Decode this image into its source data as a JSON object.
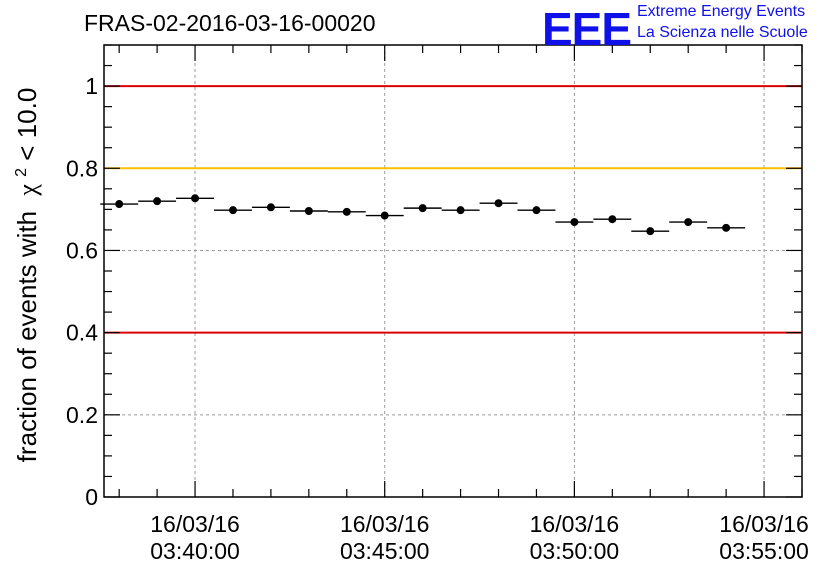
{
  "header": {
    "run_title": "FRAS-02-2016-03-16-00020",
    "logo": "EEE",
    "logo_line1": "Extreme Energy Events",
    "logo_line2": "La Scienza nelle Scuole"
  },
  "chart_data": {
    "type": "scatter",
    "title": "FRAS-02-2016-03-16-00020",
    "ylabel_prefix": "fraction of events with",
    "ylabel_symbol": "χ",
    "ylabel_sup": "2",
    "ylabel_suffix": " < 10.0",
    "xlabel": "",
    "xlim_minutes": [
      37.6,
      56.0
    ],
    "ylim": [
      0,
      1.1
    ],
    "yticks": [
      0,
      0.2,
      0.4,
      0.6,
      0.8,
      1
    ],
    "ytick_labels": [
      "0",
      "0.2",
      "0.4",
      "0.6",
      "0.8",
      "1"
    ],
    "xticks": [
      {
        "minute": 40,
        "line1": "16/03/16",
        "line2": "03:40:00"
      },
      {
        "minute": 45,
        "line1": "16/03/16",
        "line2": "03:45:00"
      },
      {
        "minute": 50,
        "line1": "16/03/16",
        "line2": "03:50:00"
      },
      {
        "minute": 55,
        "line1": "16/03/16",
        "line2": "03:55:00"
      }
    ],
    "grid": true,
    "reference_lines": [
      {
        "y": 1.0,
        "color": "#dd0000"
      },
      {
        "y": 0.8,
        "color": "#ffc000"
      },
      {
        "y": 0.4,
        "color": "#dd0000"
      }
    ],
    "bin_width_minutes": 1,
    "series": [
      {
        "marker_color": "#000000",
        "points": [
          {
            "x": "03:38:00",
            "minute": 38.0,
            "y": 0.713
          },
          {
            "x": "03:39:00",
            "minute": 39.0,
            "y": 0.72
          },
          {
            "x": "03:40:00",
            "minute": 40.0,
            "y": 0.727
          },
          {
            "x": "03:41:00",
            "minute": 41.0,
            "y": 0.698
          },
          {
            "x": "03:42:00",
            "minute": 42.0,
            "y": 0.705
          },
          {
            "x": "03:43:00",
            "minute": 43.0,
            "y": 0.696
          },
          {
            "x": "03:44:00",
            "minute": 44.0,
            "y": 0.694
          },
          {
            "x": "03:45:00",
            "minute": 45.0,
            "y": 0.685
          },
          {
            "x": "03:46:00",
            "minute": 46.0,
            "y": 0.703
          },
          {
            "x": "03:47:00",
            "minute": 47.0,
            "y": 0.698
          },
          {
            "x": "03:48:00",
            "minute": 48.0,
            "y": 0.715
          },
          {
            "x": "03:49:00",
            "minute": 49.0,
            "y": 0.698
          },
          {
            "x": "03:50:00",
            "minute": 50.0,
            "y": 0.669
          },
          {
            "x": "03:51:00",
            "minute": 51.0,
            "y": 0.676
          },
          {
            "x": "03:52:00",
            "minute": 52.0,
            "y": 0.647
          },
          {
            "x": "03:53:00",
            "minute": 53.0,
            "y": 0.669
          },
          {
            "x": "03:54:00",
            "minute": 54.0,
            "y": 0.655
          }
        ]
      }
    ]
  }
}
